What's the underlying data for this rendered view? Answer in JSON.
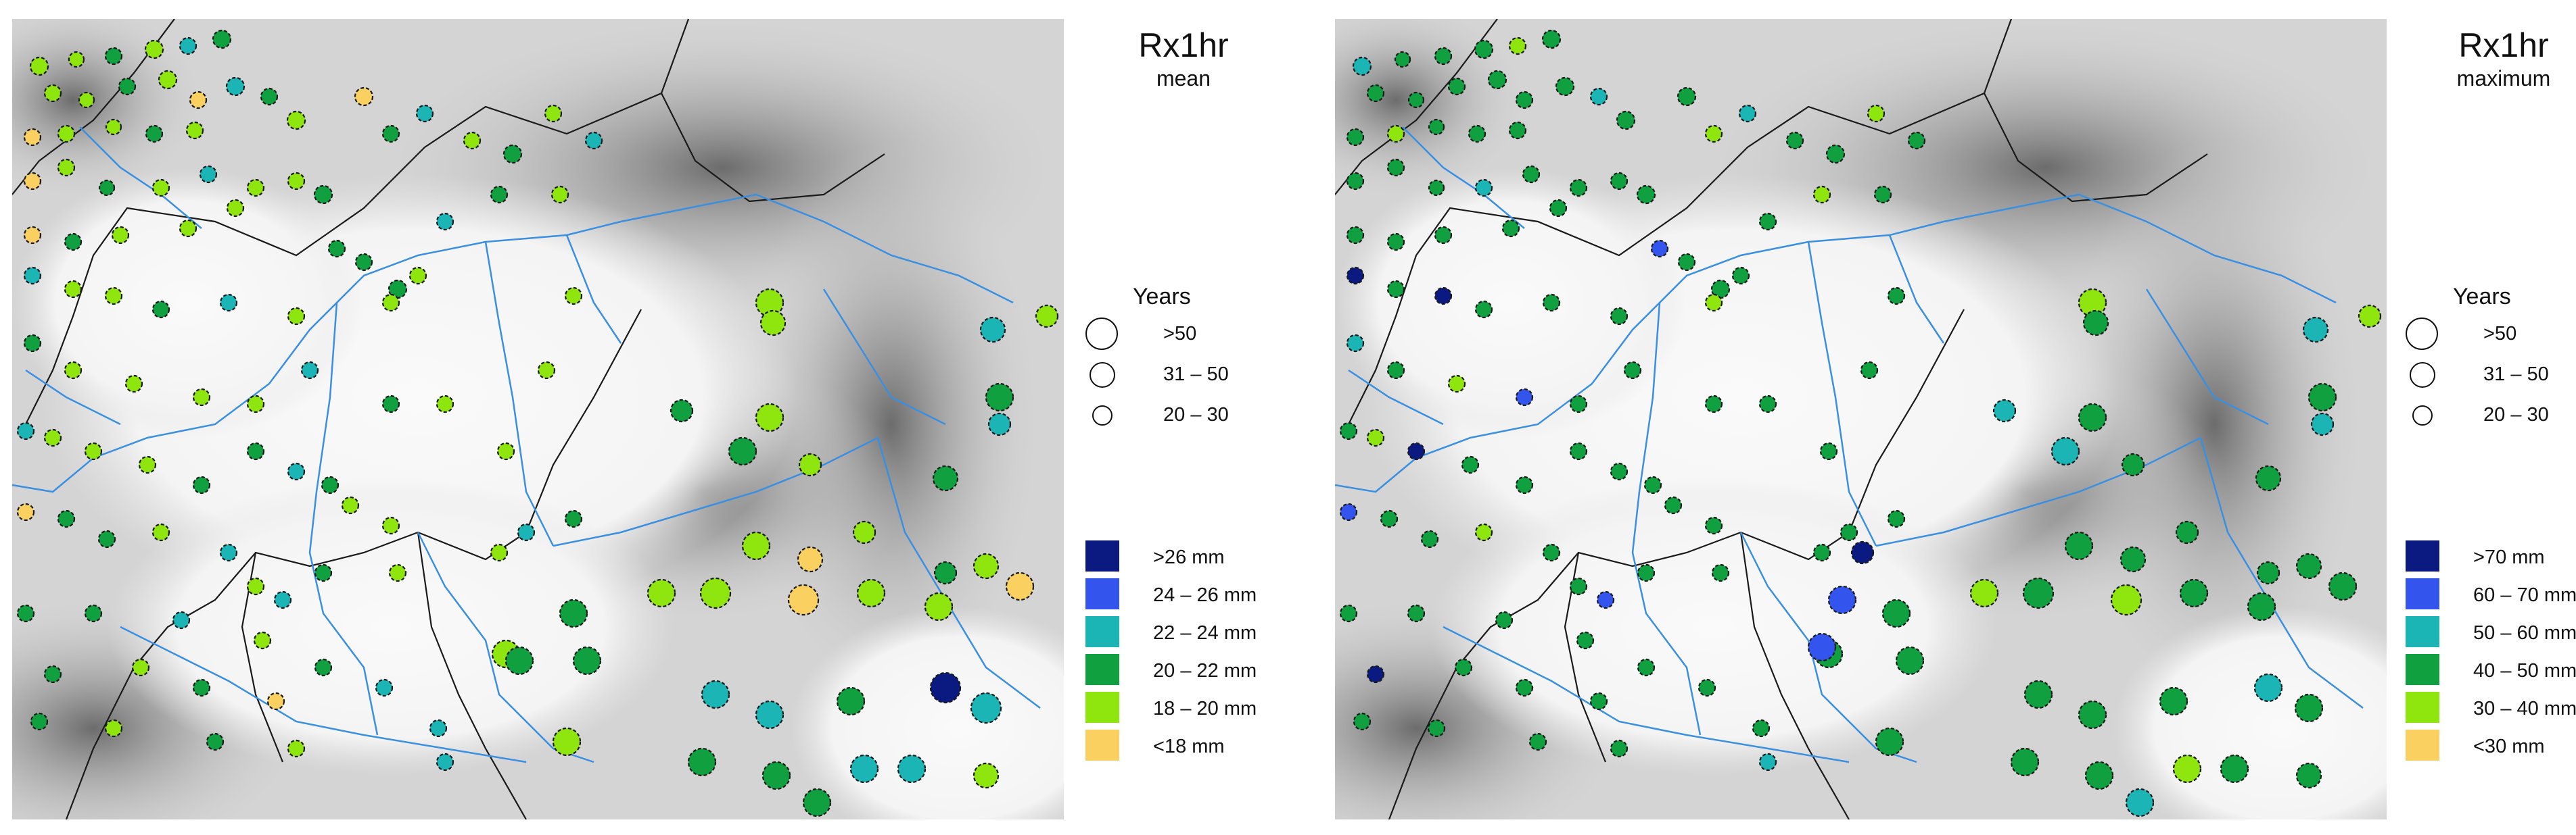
{
  "panels": [
    {
      "id": "mean",
      "title": "Rx1hr",
      "subtitle": "mean",
      "years_title": "Years",
      "size_classes": [
        ">50",
        "31 – 50",
        "20 – 30"
      ],
      "classes": [
        {
          "label": ">26 mm",
          "color": "#0b1a80"
        },
        {
          "label": "24 – 26 mm",
          "color": "#3355ee"
        },
        {
          "label": "22 – 24 mm",
          "color": "#1bb5b5"
        },
        {
          "label": "20 – 22 mm",
          "color": "#10a040"
        },
        {
          "label": "18 – 20 mm",
          "color": "#8fe60f"
        },
        {
          "label": "<18 mm",
          "color": "#fad060"
        }
      ]
    },
    {
      "id": "maximum",
      "title": "Rx1hr",
      "subtitle": "maximum",
      "years_title": "Years",
      "size_classes": [
        ">50",
        "31 – 50",
        "20 – 30"
      ],
      "classes": [
        {
          "label": ">70 mm",
          "color": "#0b1a80"
        },
        {
          "label": "60 – 70 mm",
          "color": "#3355ee"
        },
        {
          "label": "50 – 60 mm",
          "color": "#1bb5b5"
        },
        {
          "label": "40 – 50 mm",
          "color": "#10a040"
        },
        {
          "label": "30 – 40 mm",
          "color": "#8fe60f"
        },
        {
          "label": "<30 mm",
          "color": "#fad060"
        }
      ]
    }
  ]
}
